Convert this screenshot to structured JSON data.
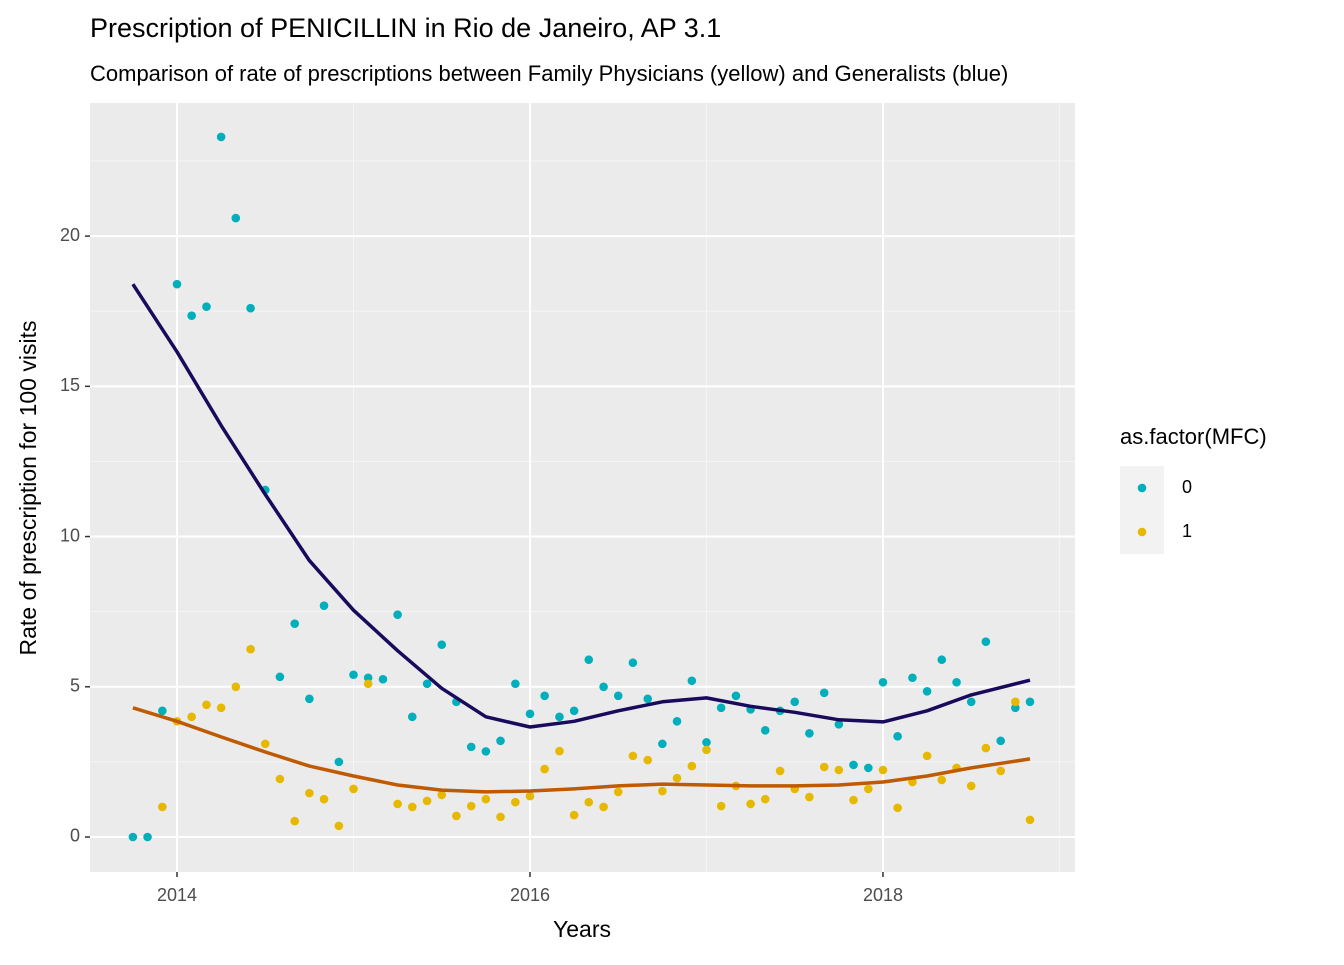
{
  "chart_data": {
    "type": "scatter",
    "title": "Prescription of PENICILLIN in Rio de Janeiro, AP 3.1",
    "subtitle": "Comparison of rate of prescriptions between Family Physicians (yellow) and Generalists (blue)",
    "x_label": "Years",
    "y_label": "Rate of prescription for 100 visits",
    "legend_title": "as.factor(MFC)",
    "legend_position": "right",
    "grid": true,
    "xlim": [
      2013.507,
      2019.088
    ],
    "ylim": [
      -1.165,
      24.43
    ],
    "xticks": [
      2014,
      2016,
      2018
    ],
    "yticks": [
      0,
      5,
      10,
      15,
      20
    ],
    "x_minor_ticks": [
      2015,
      2017,
      2019
    ],
    "y_minor_ticks": [
      2.5,
      7.5,
      12.5,
      17.5,
      22.5
    ],
    "x": [
      2013.75,
      2013.833,
      2013.917,
      2014,
      2014.083,
      2014.167,
      2014.25,
      2014.333,
      2014.417,
      2014.5,
      2014.583,
      2014.667,
      2014.75,
      2014.833,
      2014.917,
      2015,
      2015.083,
      2015.167,
      2015.25,
      2015.333,
      2015.417,
      2015.5,
      2015.583,
      2015.667,
      2015.75,
      2015.833,
      2015.917,
      2016,
      2016.083,
      2016.167,
      2016.25,
      2016.333,
      2016.417,
      2016.5,
      2016.583,
      2016.667,
      2016.75,
      2016.833,
      2016.917,
      2017,
      2017.083,
      2017.167,
      2017.25,
      2017.333,
      2017.417,
      2017.5,
      2017.583,
      2017.667,
      2017.75,
      2017.833,
      2017.917,
      2018,
      2018.083,
      2018.167,
      2018.25,
      2018.333,
      2018.417,
      2018.5,
      2018.583,
      2018.667,
      2018.75,
      2018.833
    ],
    "series": [
      {
        "name": "0",
        "color": "#00AFBB",
        "values": [
          0,
          0,
          4.2,
          18.4,
          17.35,
          17.65,
          23.3,
          20.6,
          17.6,
          11.55,
          5.33,
          7.1,
          4.6,
          7.7,
          2.5,
          5.4,
          5.3,
          5.25,
          7.4,
          4.0,
          5.1,
          6.4,
          4.5,
          3.0,
          2.85,
          3.2,
          5.1,
          4.1,
          4.7,
          4.0,
          4.2,
          5.9,
          5.0,
          4.7,
          5.8,
          4.6,
          3.1,
          3.85,
          5.2,
          3.15,
          4.3,
          4.7,
          4.25,
          3.55,
          4.2,
          4.5,
          3.45,
          4.8,
          3.75,
          2.4,
          2.3,
          5.15,
          3.35,
          5.3,
          4.85,
          5.9,
          5.15,
          4.5,
          6.5,
          3.2,
          4.3,
          4.5
        ],
        "trend": {
          "color": "#1a0a5c",
          "x": [
            2013.75,
            2014,
            2014.25,
            2014.5,
            2014.75,
            2015,
            2015.25,
            2015.5,
            2015.75,
            2016,
            2016.25,
            2016.5,
            2016.75,
            2017,
            2017.25,
            2017.5,
            2017.75,
            2018,
            2018.25,
            2018.5,
            2018.833
          ],
          "values": [
            18.4,
            16.15,
            13.7,
            11.4,
            9.2,
            7.55,
            6.2,
            4.95,
            4.0,
            3.66,
            3.85,
            4.2,
            4.5,
            4.63,
            4.35,
            4.15,
            3.9,
            3.83,
            4.2,
            4.73,
            5.22
          ]
        }
      },
      {
        "name": "1",
        "color": "#E7B800",
        "values": [
          null,
          null,
          1.0,
          3.85,
          4.0,
          4.4,
          4.3,
          5.0,
          6.25,
          3.1,
          1.93,
          0.53,
          1.46,
          1.26,
          0.37,
          1.6,
          5.1,
          null,
          1.1,
          1.0,
          1.2,
          1.4,
          0.7,
          1.03,
          1.26,
          0.67,
          1.16,
          1.36,
          2.26,
          2.86,
          0.73,
          1.16,
          1.0,
          1.5,
          2.7,
          2.56,
          1.53,
          1.96,
          2.36,
          2.9,
          1.03,
          1.7,
          1.1,
          1.26,
          2.2,
          1.6,
          1.33,
          2.33,
          2.23,
          1.23,
          1.6,
          2.23,
          0.97,
          1.83,
          2.7,
          1.9,
          2.3,
          1.7,
          2.96,
          2.2,
          4.5,
          0.57
        ],
        "trend": {
          "color": "#c05a00",
          "x": [
            2013.75,
            2014,
            2014.25,
            2014.5,
            2014.75,
            2015,
            2015.25,
            2015.5,
            2015.75,
            2016,
            2016.25,
            2016.5,
            2016.75,
            2017,
            2017.25,
            2017.5,
            2017.75,
            2018,
            2018.25,
            2018.5,
            2018.833
          ],
          "values": [
            4.3,
            3.85,
            3.33,
            2.83,
            2.36,
            2.03,
            1.73,
            1.56,
            1.5,
            1.53,
            1.6,
            1.7,
            1.76,
            1.73,
            1.7,
            1.7,
            1.73,
            1.83,
            2.03,
            2.3,
            2.6
          ]
        }
      }
    ]
  }
}
